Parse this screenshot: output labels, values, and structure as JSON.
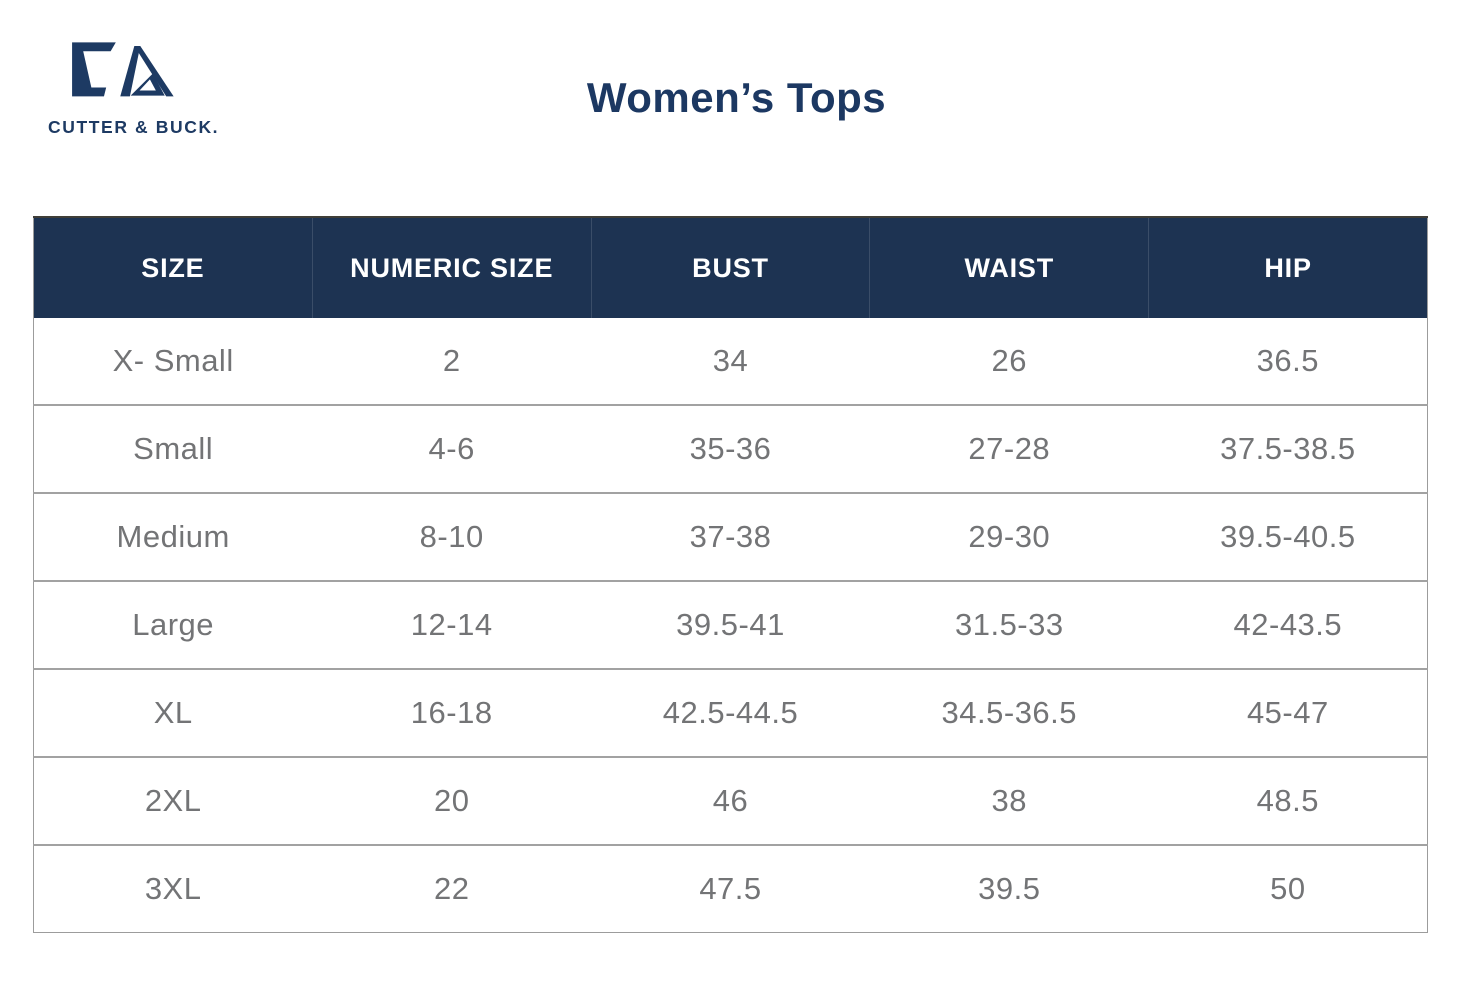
{
  "brand": {
    "wordmark": "CUTTER & BUCK.",
    "logo_icon": "cb-monogram-icon",
    "navy": "#1d3a63"
  },
  "page": {
    "title": "Women’s Tops"
  },
  "colors": {
    "header_background": "#1d3352",
    "header_text": "#ffffff",
    "body_text": "#737476",
    "row_divider": "#a2a2a2",
    "table_border": "#9c9c9c"
  },
  "table": {
    "columns": [
      "SIZE",
      "NUMERIC SIZE",
      "BUST",
      "WAIST",
      "HIP"
    ],
    "rows": [
      [
        "X- Small",
        "2",
        "34",
        "26",
        "36.5"
      ],
      [
        "Small",
        "4-6",
        "35-36",
        "27-28",
        "37.5-38.5"
      ],
      [
        "Medium",
        "8-10",
        "37-38",
        "29-30",
        "39.5-40.5"
      ],
      [
        "Large",
        "12-14",
        "39.5-41",
        "31.5-33",
        "42-43.5"
      ],
      [
        "XL",
        "16-18",
        "42.5-44.5",
        "34.5-36.5",
        "45-47"
      ],
      [
        "2XL",
        "20",
        "46",
        "38",
        "48.5"
      ],
      [
        "3XL",
        "22",
        "47.5",
        "39.5",
        "50"
      ]
    ]
  }
}
